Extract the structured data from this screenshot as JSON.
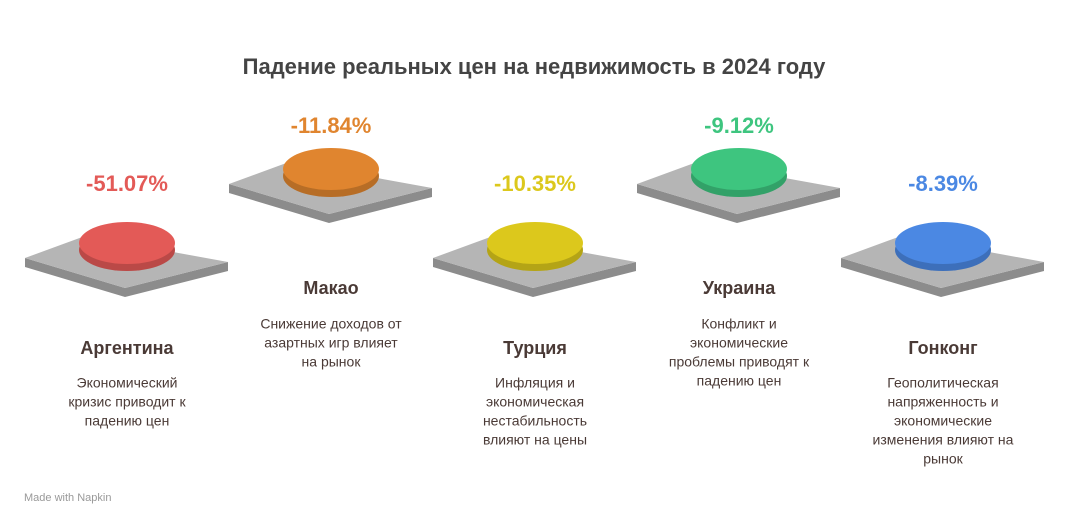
{
  "title": "Падение реальных цен на недвижимость в 2024 году",
  "items": [
    {
      "value": "-51.07%",
      "name": "Аргентина",
      "description": [
        "Экономический",
        "кризис приводит к",
        "падению цен"
      ],
      "color": "#e35a57"
    },
    {
      "value": "-11.84%",
      "name": "Макао",
      "description": [
        "Снижение доходов от",
        "азартных игр влияет",
        "на рынок"
      ],
      "color": "#e0852f"
    },
    {
      "value": "-10.35%",
      "name": "Турция",
      "description": [
        "Инфляция и",
        "экономическая",
        "нестабильность",
        "влияют на цены"
      ],
      "color": "#dcc81c"
    },
    {
      "value": "-9.12%",
      "name": "Украина",
      "description": [
        "Конфликт и",
        "экономические",
        "проблемы приводят к",
        "падению цен"
      ],
      "color": "#3ec57f"
    },
    {
      "value": "-8.39%",
      "name": "Гонконг",
      "description": [
        "Геополитическая",
        "напряженность и",
        "экономические",
        "изменения влияют на",
        "рынок"
      ],
      "color": "#4b88e3"
    }
  ],
  "footer": "Made with Napkin"
}
